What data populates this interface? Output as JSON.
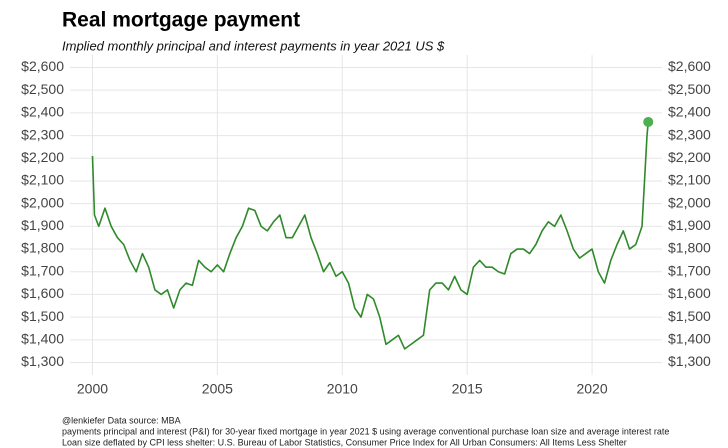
{
  "chart_data": {
    "type": "line",
    "title": "Real mortgage payment",
    "subtitle": "Implied monthly principal and interest payments in year 2021 US $",
    "footnotes": [
      "@lenkiefer Data source: MBA",
      "payments principal and interest (P&I) for 30-year fixed mortgage in year 2021 $ using average conventional purchase loan size and average interest rate",
      "Loan size deflated by CPI less shelter: U.S. Bureau of Labor Statistics, Consumer Price Index for All Urban Consumers: All Items Less Shelter"
    ],
    "x": [
      2000.0,
      2000.08,
      2000.25,
      2000.5,
      2000.75,
      2001.0,
      2001.25,
      2001.5,
      2001.75,
      2002.0,
      2002.25,
      2002.5,
      2002.75,
      2003.0,
      2003.25,
      2003.5,
      2003.75,
      2004.0,
      2004.25,
      2004.5,
      2004.75,
      2005.0,
      2005.25,
      2005.5,
      2005.75,
      2006.0,
      2006.25,
      2006.5,
      2006.75,
      2007.0,
      2007.25,
      2007.5,
      2007.75,
      2008.0,
      2008.25,
      2008.5,
      2008.75,
      2009.0,
      2009.25,
      2009.5,
      2009.75,
      2010.0,
      2010.25,
      2010.5,
      2010.75,
      2011.0,
      2011.25,
      2011.5,
      2011.75,
      2012.0,
      2012.25,
      2012.5,
      2012.75,
      2013.0,
      2013.25,
      2013.5,
      2013.75,
      2014.0,
      2014.25,
      2014.5,
      2014.75,
      2015.0,
      2015.25,
      2015.5,
      2015.75,
      2016.0,
      2016.25,
      2016.5,
      2016.75,
      2017.0,
      2017.25,
      2017.5,
      2017.75,
      2018.0,
      2018.25,
      2018.5,
      2018.75,
      2019.0,
      2019.25,
      2019.5,
      2019.75,
      2020.0,
      2020.25,
      2020.5,
      2020.75,
      2021.0,
      2021.25,
      2021.5,
      2021.75,
      2022.0,
      2022.1,
      2022.2,
      2022.25
    ],
    "series": [
      {
        "name": "Real mortgage payment",
        "color": "#2f8a2a",
        "values": [
          2210,
          1950,
          1900,
          1980,
          1900,
          1850,
          1820,
          1750,
          1700,
          1780,
          1720,
          1620,
          1600,
          1620,
          1540,
          1620,
          1650,
          1640,
          1750,
          1720,
          1700,
          1730,
          1700,
          1780,
          1850,
          1900,
          1980,
          1970,
          1900,
          1880,
          1920,
          1950,
          1850,
          1850,
          1900,
          1950,
          1850,
          1780,
          1700,
          1740,
          1680,
          1700,
          1650,
          1540,
          1500,
          1600,
          1580,
          1500,
          1380,
          1400,
          1420,
          1360,
          1380,
          1400,
          1420,
          1620,
          1650,
          1650,
          1620,
          1680,
          1620,
          1600,
          1720,
          1750,
          1720,
          1720,
          1700,
          1690,
          1780,
          1800,
          1800,
          1780,
          1820,
          1880,
          1920,
          1900,
          1950,
          1880,
          1800,
          1760,
          1780,
          1800,
          1700,
          1650,
          1750,
          1820,
          1880,
          1800,
          1820,
          1900,
          2100,
          2300,
          2360
        ]
      }
    ],
    "end_marker_color": "#4caf50",
    "xlim": [
      1999.1,
      2022.8
    ],
    "xticks": [
      2000,
      2005,
      2010,
      2015,
      2020
    ],
    "ylim": [
      1245,
      2655
    ],
    "yticks": [
      {
        "value": 1300,
        "label": "$1,300"
      },
      {
        "value": 1400,
        "label": "$1,400"
      },
      {
        "value": 1500,
        "label": "$1,500"
      },
      {
        "value": 1600,
        "label": "$1,600"
      },
      {
        "value": 1700,
        "label": "$1,700"
      },
      {
        "value": 1800,
        "label": "$1,800"
      },
      {
        "value": 1900,
        "label": "$1,900"
      },
      {
        "value": 2000,
        "label": "$2,000"
      },
      {
        "value": 2100,
        "label": "$2,100"
      },
      {
        "value": 2200,
        "label": "$2,200"
      },
      {
        "value": 2300,
        "label": "$2,300"
      },
      {
        "value": 2400,
        "label": "$2,400"
      },
      {
        "value": 2500,
        "label": "$2,500"
      },
      {
        "value": 2600,
        "label": "$2,600"
      }
    ],
    "y2lim": [
      1245,
      2655
    ],
    "y2ticks": [
      {
        "value": 1300,
        "label": "$1,300"
      },
      {
        "value": 1400,
        "label": "$1,400"
      },
      {
        "value": 1500,
        "label": "$1,500"
      },
      {
        "value": 1600,
        "label": "$1,600"
      },
      {
        "value": 1700,
        "label": "$1,700"
      },
      {
        "value": 1800,
        "label": "$1,800"
      },
      {
        "value": 1900,
        "label": "$1,900"
      },
      {
        "value": 2000,
        "label": "$2,000"
      },
      {
        "value": 2100,
        "label": "$2,100"
      },
      {
        "value": 2200,
        "label": "$2,200"
      },
      {
        "value": 2300,
        "label": "$2,300"
      },
      {
        "value": 2400,
        "label": "$2,400"
      },
      {
        "value": 2500,
        "label": "$2,500"
      },
      {
        "value": 2600,
        "label": "$2,600"
      }
    ],
    "grid": true
  }
}
